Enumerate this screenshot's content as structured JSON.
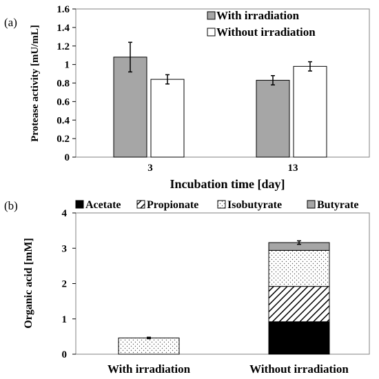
{
  "chart_data": [
    {
      "panel_label": "(a)",
      "type": "bar",
      "categories": [
        "3",
        "13"
      ],
      "series": [
        {
          "name": "With irradiation",
          "values": [
            1.08,
            0.83
          ],
          "errors": [
            0.16,
            0.05
          ],
          "color": "#a6a6a6"
        },
        {
          "name": "Without irradiation",
          "values": [
            0.84,
            0.98
          ],
          "errors": [
            0.05,
            0.05
          ],
          "color": "#ffffff"
        }
      ],
      "xlabel": "Incubation time [day]",
      "ylabel": "Protease activity [mU/mL]",
      "ylim": [
        0,
        1.6
      ],
      "yticks": [
        "0",
        "0.2",
        "0.4",
        "0.6",
        "0.8",
        "1",
        "1.2",
        "1.4",
        "1.6"
      ],
      "legend_position": "top-right",
      "grid": false
    },
    {
      "panel_label": "(b)",
      "type": "stacked-bar",
      "categories": [
        "With irradiation",
        "Without irradiation"
      ],
      "series": [
        {
          "name": "Acetate",
          "values": [
            0,
            0.92
          ],
          "pattern": "solid-black"
        },
        {
          "name": "Propionate",
          "values": [
            0,
            1.0
          ],
          "pattern": "diagonal-hatch"
        },
        {
          "name": "Isobutyrate",
          "values": [
            0.46,
            1.02
          ],
          "pattern": "dots"
        },
        {
          "name": "Butyrate",
          "values": [
            0,
            0.22
          ],
          "pattern": "solid-gray"
        }
      ],
      "totals_error": [
        0.02,
        0.05
      ],
      "xlabel": "",
      "ylabel": "Organic acid [mM]",
      "ylim": [
        0,
        4
      ],
      "yticks": [
        "0",
        "1",
        "2",
        "3",
        "4"
      ],
      "legend_position": "top",
      "grid": false
    }
  ]
}
